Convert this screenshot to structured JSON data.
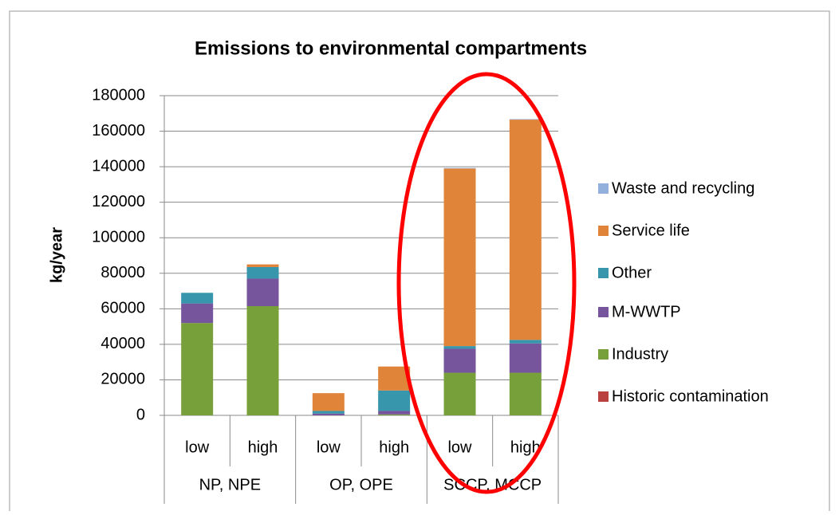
{
  "chart_data": {
    "type": "stacked_bar",
    "title": "Emissions to environmental compartments",
    "y_label": "kg/year",
    "groups": [
      {
        "label": "NP, NPE",
        "categories": [
          "low",
          "high"
        ]
      },
      {
        "label": "OP, OPE",
        "categories": [
          "low",
          "high"
        ]
      },
      {
        "label": "SCCP, MCCP",
        "categories": [
          "low",
          "high"
        ]
      }
    ],
    "series": [
      {
        "name": "Historic contamination",
        "color": "#b9413f",
        "values": [
          0,
          0,
          0,
          0,
          0,
          0
        ]
      },
      {
        "name": "Industry",
        "color": "#77a03a",
        "values": [
          52000,
          61500,
          0,
          500,
          24000,
          24000
        ]
      },
      {
        "name": "M-WWTP",
        "color": "#76559c",
        "values": [
          11000,
          15500,
          1000,
          2000,
          13500,
          16500
        ]
      },
      {
        "name": "Other",
        "color": "#3795ac",
        "values": [
          6000,
          6500,
          1500,
          11500,
          1500,
          2000
        ]
      },
      {
        "name": "Service life",
        "color": "#e0843a",
        "values": [
          0,
          1500,
          10000,
          13500,
          100000,
          124000
        ]
      },
      {
        "name": "Waste and recycling",
        "color": "#93afdc",
        "values": [
          0,
          0,
          0,
          0,
          300,
          300
        ]
      }
    ],
    "ylim": [
      0,
      180000
    ],
    "yticks": [
      0,
      20000,
      40000,
      60000,
      80000,
      100000,
      120000,
      140000,
      160000,
      180000
    ],
    "grid": true,
    "legend": "right"
  }
}
